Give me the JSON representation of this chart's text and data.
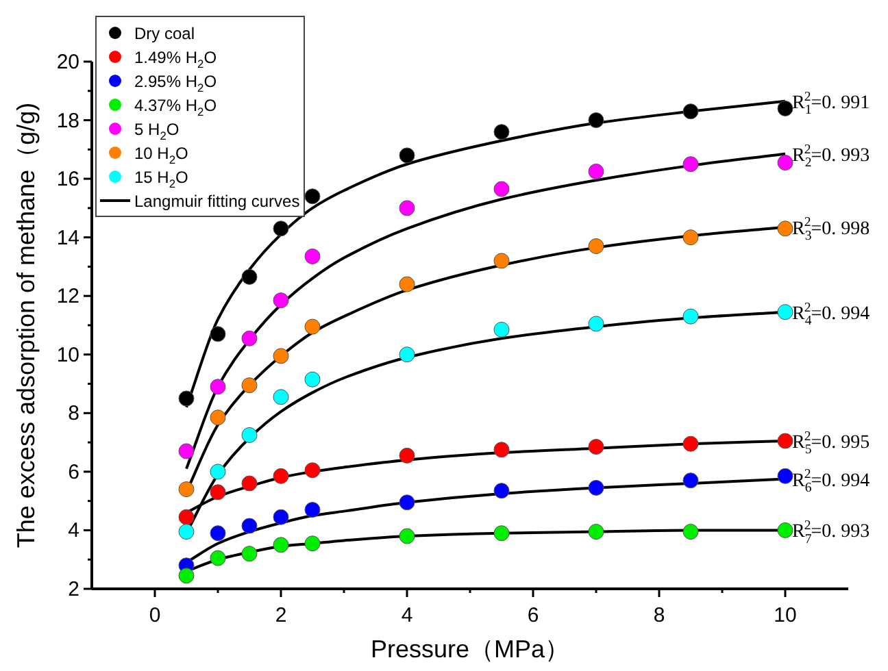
{
  "chart_data": {
    "type": "scatter",
    "xlabel": "Pressure（MPa）",
    "ylabel": "The excess adsorption of methane（g/g)",
    "xlim": [
      -1,
      11
    ],
    "ylim": [
      2,
      20
    ],
    "xticks": [
      0,
      {
        "value": 1,
        "label": null
      },
      2,
      {
        "value": 3,
        "label": null
      },
      4,
      {
        "value": 5,
        "label": null
      },
      6,
      {
        "value": 7,
        "label": null
      },
      8,
      {
        "value": 9,
        "label": null
      },
      10
    ],
    "yticks": [
      2,
      {
        "value": 3,
        "label": null
      },
      4,
      {
        "value": 5,
        "label": null
      },
      6,
      {
        "value": 7,
        "label": null
      },
      8,
      {
        "value": 9,
        "label": null
      },
      10,
      {
        "value": 11,
        "label": null
      },
      12,
      {
        "value": 13,
        "label": null
      },
      14,
      {
        "value": 15,
        "label": null
      },
      16,
      {
        "value": 17,
        "label": null
      },
      18,
      {
        "value": 19,
        "label": null
      },
      20
    ],
    "grid": false,
    "legend": "top left",
    "marker": "circle",
    "x": [
      0.5,
      1,
      1.5,
      2,
      2.5,
      4,
      5.5,
      7,
      8.5,
      10
    ],
    "series": [
      {
        "name": "Dry coal",
        "color": "#000000",
        "values": [
          8.5,
          10.7,
          12.65,
          14.3,
          15.4,
          16.8,
          17.6,
          18.0,
          18.3,
          18.4
        ]
      },
      {
        "name": "1.49% H$_{2}$O",
        "color": "#ff0000",
        "values": [
          4.45,
          5.3,
          5.6,
          5.85,
          6.05,
          6.55,
          6.75,
          6.85,
          6.95,
          7.05
        ]
      },
      {
        "name": "2.95% H$_{2}$O",
        "color": "#0000ff",
        "values": [
          2.8,
          3.9,
          4.15,
          4.45,
          4.7,
          4.95,
          5.35,
          5.45,
          5.7,
          5.85
        ]
      },
      {
        "name": "4.37% H$_{2}$O",
        "color": "#00ee00",
        "values": [
          2.45,
          3.05,
          3.2,
          3.5,
          3.55,
          3.8,
          3.9,
          3.95,
          3.95,
          4.0
        ]
      },
      {
        "name": "5 H$_{2}$O",
        "color": "#ff00ff",
        "values": [
          6.7,
          8.9,
          10.55,
          11.85,
          13.35,
          15.0,
          15.65,
          16.25,
          16.5,
          16.55
        ]
      },
      {
        "name": "10 H$_{2}$O",
        "color": "#ff8000",
        "values": [
          5.4,
          7.85,
          8.95,
          9.95,
          10.95,
          12.4,
          13.2,
          13.7,
          14.0,
          14.3
        ]
      },
      {
        "name": "15 H$_{2}$O",
        "color": "#00ffff",
        "values": [
          3.95,
          6.0,
          7.25,
          8.55,
          9.15,
          10.0,
          10.85,
          11.05,
          11.3,
          11.45
        ]
      },
      {
        "name": "Langmuir fitting curves",
        "type": "line",
        "marker": "none",
        "color": "#000000",
        "x": [
          0.5,
          1,
          1.5,
          2,
          2.5,
          3,
          4,
          5.5,
          7,
          8.5,
          10
        ],
        "values": [
          8.2,
          11.2,
          12.9,
          14.1,
          15.0,
          15.6,
          16.5,
          17.3,
          17.9,
          18.3,
          18.65
        ]
      },
      {
        "type": "line",
        "marker": "none",
        "color": "#000000",
        "x": [
          0.5,
          1,
          1.5,
          2,
          2.5,
          3,
          4,
          5.5,
          7,
          8.5,
          10
        ],
        "values": [
          6.1,
          8.9,
          10.5,
          11.7,
          12.6,
          13.3,
          14.3,
          15.3,
          15.95,
          16.45,
          16.85
        ]
      },
      {
        "type": "line",
        "marker": "none",
        "color": "#000000",
        "x": [
          0.5,
          1,
          1.5,
          2,
          2.5,
          3,
          4,
          5.5,
          7,
          8.5,
          10
        ],
        "values": [
          5.3,
          7.6,
          8.95,
          9.95,
          10.75,
          11.3,
          12.2,
          13.05,
          13.65,
          14.05,
          14.35
        ]
      },
      {
        "type": "line",
        "marker": "none",
        "color": "#000000",
        "x": [
          0.5,
          1,
          1.5,
          2,
          2.5,
          3,
          4,
          5.5,
          7,
          8.5,
          10
        ],
        "values": [
          3.9,
          5.9,
          7.15,
          8.05,
          8.7,
          9.2,
          9.9,
          10.55,
          10.95,
          11.25,
          11.45
        ]
      },
      {
        "type": "line",
        "marker": "none",
        "color": "#000000",
        "x": [
          0.5,
          1,
          1.5,
          2,
          2.5,
          3,
          4,
          5.5,
          7,
          8.5,
          10
        ],
        "values": [
          4.6,
          5.15,
          5.5,
          5.8,
          6.0,
          6.15,
          6.4,
          6.65,
          6.8,
          6.95,
          7.05
        ]
      },
      {
        "type": "line",
        "marker": "none",
        "color": "#000000",
        "x": [
          0.5,
          1,
          1.5,
          2,
          2.5,
          3,
          4,
          5.5,
          7,
          8.5,
          10
        ],
        "values": [
          2.9,
          3.55,
          3.95,
          4.25,
          4.5,
          4.65,
          4.95,
          5.25,
          5.45,
          5.6,
          5.75
        ]
      },
      {
        "type": "line",
        "marker": "none",
        "color": "#000000",
        "x": [
          0.5,
          1,
          1.5,
          2,
          2.5,
          3,
          4,
          5.5,
          7,
          8.5,
          10
        ],
        "values": [
          2.6,
          3.0,
          3.25,
          3.45,
          3.55,
          3.65,
          3.8,
          3.9,
          3.95,
          4.0,
          4.0
        ]
      }
    ],
    "annotations": [
      "R$_{1}$$^{2}$=0. 991",
      "R$_{2}$$^{2}$=0. 993",
      "R$_{3}$$^{2}$=0. 998",
      "R$_{4}$$^{2}$=0. 994",
      "R$_{5}$$^{2}$=0. 995",
      "R$_{6}$$^{2}$=0. 994",
      "R$_{7}$$^{2}$=0. 993"
    ]
  }
}
